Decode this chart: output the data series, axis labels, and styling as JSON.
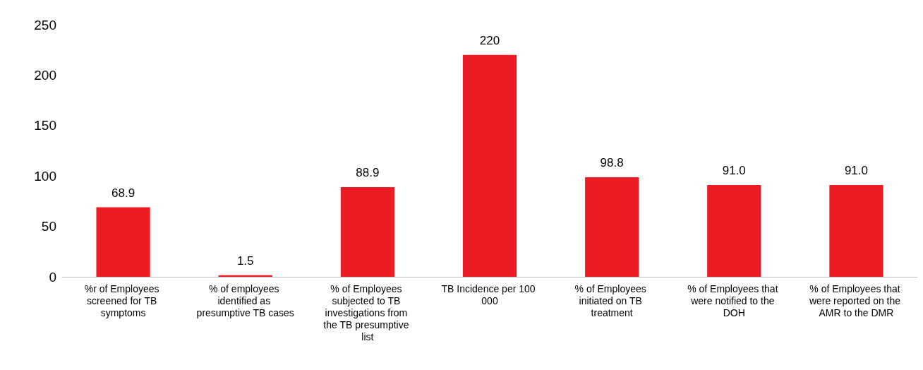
{
  "chart_data": {
    "type": "bar",
    "categories": [
      "%r of Employees screened for TB symptoms",
      "% of employees identified as presumptive TB cases",
      "% of Employees subjected to TB investigations from the TB presumptive list",
      "TB Incidence per 100 000",
      "% of Employees initiated on TB treatment",
      "% of Employees that were notified to the DOH",
      "% of Employees that were reported on the AMR to the DMR"
    ],
    "values": [
      68.9,
      1.5,
      88.9,
      220,
      98.8,
      91.0,
      91.0
    ],
    "value_labels": [
      "68.9",
      "1.5",
      "88.9",
      "220",
      "98.8",
      "91.0",
      "91.0"
    ],
    "color": "#ed1c24",
    "ylim": [
      0,
      250
    ],
    "yticks": [
      0,
      50,
      100,
      150,
      200,
      250
    ],
    "grid": false
  }
}
